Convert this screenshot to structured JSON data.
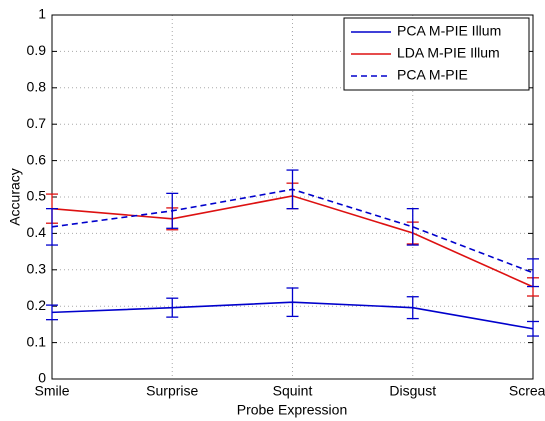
{
  "chart_data": {
    "type": "line",
    "xlabel": "Probe Expression",
    "ylabel": "Accuracy",
    "categories": [
      "Smile",
      "Surprise",
      "Squint",
      "Disgust",
      "Scream"
    ],
    "series": [
      {
        "name": "PCA M-PIE Illum",
        "color": "#0000cc",
        "style": "solid",
        "values": [
          0.183,
          0.196,
          0.211,
          0.196,
          0.138
        ],
        "errors": [
          0.02,
          0.026,
          0.039,
          0.03,
          0.02
        ]
      },
      {
        "name": "LDA M-PIE Illum",
        "color": "#dd1111",
        "style": "solid",
        "values": [
          0.468,
          0.44,
          0.503,
          0.401,
          0.253
        ],
        "errors": [
          0.04,
          0.03,
          0.035,
          0.03,
          0.025
        ]
      },
      {
        "name": "PCA M-PIE",
        "color": "#0000cc",
        "style": "dash",
        "values": [
          0.418,
          0.462,
          0.521,
          0.418,
          0.292
        ],
        "errors": [
          0.05,
          0.048,
          0.053,
          0.05,
          0.038
        ]
      }
    ],
    "ylim": [
      0,
      1
    ],
    "yticks": [
      0,
      0.1,
      0.2,
      0.3,
      0.4,
      0.5,
      0.6,
      0.7,
      0.8,
      0.9,
      1
    ],
    "grid": true,
    "legend": "upper-right"
  }
}
